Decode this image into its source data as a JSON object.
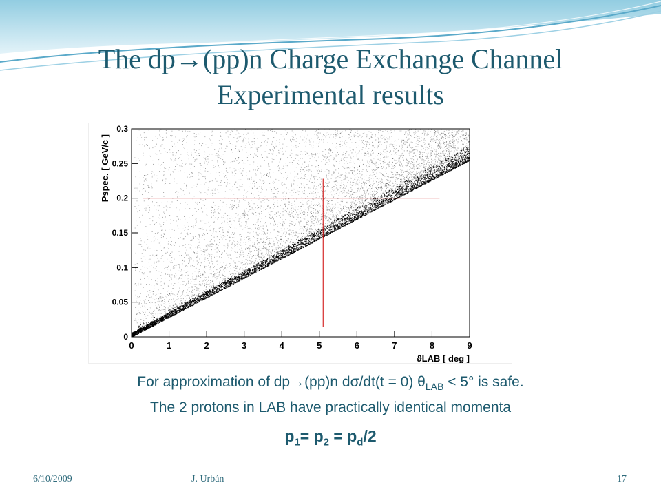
{
  "slide": {
    "title_line1": "The dp→(pp)n Charge Exchange Channel",
    "title_line2": "Experimental results",
    "note_line1": "For approximation of dp→(pp)n dσ/dt(t = 0) θ",
    "note_line1_sub": "LAB",
    "note_line1_end": " < 5° is safe.",
    "note_line2": "The 2 protons in LAB have practically identical momenta",
    "formula_p1": "p",
    "formula_s1": "1",
    "formula_mid1": "= p",
    "formula_s2": "2",
    "formula_mid2": " = p",
    "formula_s3": "d",
    "formula_end": "/2"
  },
  "footer": {
    "date": "6/10/2009",
    "author": "J. Urbán",
    "page": "17"
  },
  "colors": {
    "title": "#1d5a6e",
    "cursor_lines": "#cc0000",
    "points": "#000000"
  },
  "chart_data": {
    "type": "scatter",
    "xlabel": "ϑLAB [ deg ]",
    "ylabel": "Pspec. [ GeV/c ]",
    "xlim": [
      0,
      9
    ],
    "ylim": [
      0,
      0.3
    ],
    "x_ticks": [
      0,
      1,
      2,
      3,
      4,
      5,
      6,
      7,
      8,
      9
    ],
    "y_ticks": [
      0,
      0.05,
      0.1,
      0.15,
      0.2,
      0.25,
      0.3
    ],
    "y_tick_labels": [
      "0",
      "0.05",
      "0.1",
      "0.15",
      "0.2",
      "0.25",
      "0.3"
    ],
    "lower_edge_slope_gev_per_deg": 0.0283,
    "cursor_lines": {
      "x": 5.1,
      "y": 0.2
    }
  }
}
